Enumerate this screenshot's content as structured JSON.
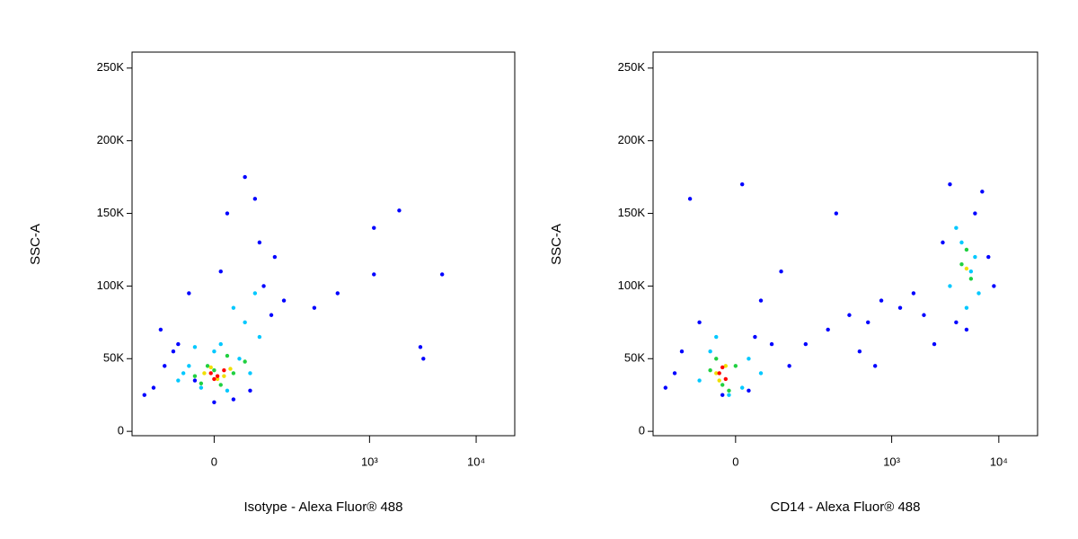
{
  "chart_data": [
    {
      "type": "scatter",
      "x_label": "Isotype - Alexa Fluor® 488",
      "y_label": "SSC-A",
      "xscale": "biexponential",
      "xlim": [
        -200,
        23000
      ],
      "ylim": [
        -3000,
        261000
      ],
      "xticks": [
        0,
        {
          "value": 1000,
          "label": "10³"
        },
        {
          "value": 10000,
          "label": "10⁴"
        }
      ],
      "yticks": [
        0,
        {
          "value": 50000,
          "label": "50K"
        },
        {
          "value": 100000,
          "label": "100K"
        },
        {
          "value": 150000,
          "label": "150K"
        },
        {
          "value": 200000,
          "label": "200K"
        },
        {
          "value": 250000,
          "label": "250K"
        }
      ],
      "series": [
        {
          "color": "#0000ff",
          "x": [
            -150,
            -120,
            -90,
            -60,
            -30,
            0,
            30,
            60,
            90,
            120,
            150,
            -100,
            20,
            50,
            80,
            -40,
            10,
            110,
            70,
            -70,
            300,
            500,
            1100,
            1900,
            3000,
            4800,
            1100,
            3200
          ],
          "values": [
            25000,
            30000,
            45000,
            60000,
            35000,
            20000,
            22000,
            28000,
            100000,
            120000,
            90000,
            70000,
            150000,
            175000,
            130000,
            95000,
            110000,
            80000,
            160000,
            55000,
            85000,
            95000,
            140000,
            152000,
            58000,
            108000,
            108000,
            50000
          ]
        },
        {
          "color": "#00c8ff",
          "x": [
            -60,
            -40,
            -20,
            0,
            20,
            40,
            60,
            80,
            -50,
            30,
            70,
            10,
            50,
            -30
          ],
          "values": [
            35000,
            45000,
            30000,
            55000,
            28000,
            50000,
            40000,
            65000,
            40000,
            85000,
            95000,
            60000,
            75000,
            58000
          ]
        },
        {
          "color": "#20d040",
          "x": [
            -30,
            -10,
            10,
            30,
            50,
            -20,
            20,
            0
          ],
          "values": [
            38000,
            45000,
            32000,
            40000,
            48000,
            33000,
            52000,
            42000
          ]
        },
        {
          "color": "#f0e000",
          "x": [
            -15,
            5,
            25,
            -5,
            15
          ],
          "values": [
            40000,
            36000,
            43000,
            44000,
            38000
          ]
        },
        {
          "color": "#ff0000",
          "x": [
            -5,
            5,
            15,
            0
          ],
          "values": [
            40000,
            38000,
            42000,
            36000
          ]
        }
      ]
    },
    {
      "type": "scatter",
      "x_label": "CD14 - Alexa Fluor® 488",
      "y_label": "SSC-A",
      "xscale": "biexponential",
      "xlim": [
        -200,
        23000
      ],
      "ylim": [
        -3000,
        261000
      ],
      "xticks": [
        0,
        {
          "value": 1000,
          "label": "10³"
        },
        {
          "value": 10000,
          "label": "10⁴"
        }
      ],
      "yticks": [
        0,
        {
          "value": 50000,
          "label": "50K"
        },
        {
          "value": 100000,
          "label": "100K"
        },
        {
          "value": 150000,
          "label": "150K"
        },
        {
          "value": 200000,
          "label": "200K"
        },
        {
          "value": 250000,
          "label": "250K"
        }
      ],
      "series": [
        {
          "color": "#0000ff",
          "x": [
            -150,
            -100,
            -60,
            -20,
            20,
            60,
            100,
            -120,
            40,
            80,
            150,
            250,
            400,
            600,
            800,
            1200,
            1600,
            2000,
            300,
            500,
            700,
            2500,
            3000,
            3500,
            6000,
            8000,
            9000,
            4000,
            5000,
            7000,
            -80,
            10,
            30
          ],
          "values": [
            30000,
            55000,
            75000,
            25000,
            28000,
            60000,
            45000,
            40000,
            90000,
            110000,
            60000,
            70000,
            80000,
            75000,
            90000,
            85000,
            95000,
            80000,
            150000,
            55000,
            45000,
            60000,
            130000,
            170000,
            150000,
            120000,
            100000,
            75000,
            70000,
            165000,
            160000,
            170000,
            65000
          ]
        },
        {
          "color": "#00c8ff",
          "x": [
            -60,
            -40,
            -10,
            20,
            40,
            -30,
            10,
            3500,
            4500,
            5500,
            6500,
            4000,
            5000,
            6000
          ],
          "values": [
            35000,
            55000,
            25000,
            50000,
            40000,
            65000,
            30000,
            100000,
            130000,
            110000,
            95000,
            140000,
            85000,
            120000
          ]
        },
        {
          "color": "#20d040",
          "x": [
            -40,
            -20,
            0,
            -30,
            -10,
            4500,
            5500,
            5000
          ],
          "values": [
            42000,
            32000,
            45000,
            50000,
            28000,
            115000,
            105000,
            125000
          ]
        },
        {
          "color": "#f0e000",
          "x": [
            -30,
            -15,
            -25,
            5000
          ],
          "values": [
            40000,
            45000,
            35000,
            112000
          ]
        },
        {
          "color": "#ff0000",
          "x": [
            -25,
            -15,
            -20
          ],
          "values": [
            40000,
            36000,
            44000
          ]
        }
      ]
    }
  ]
}
